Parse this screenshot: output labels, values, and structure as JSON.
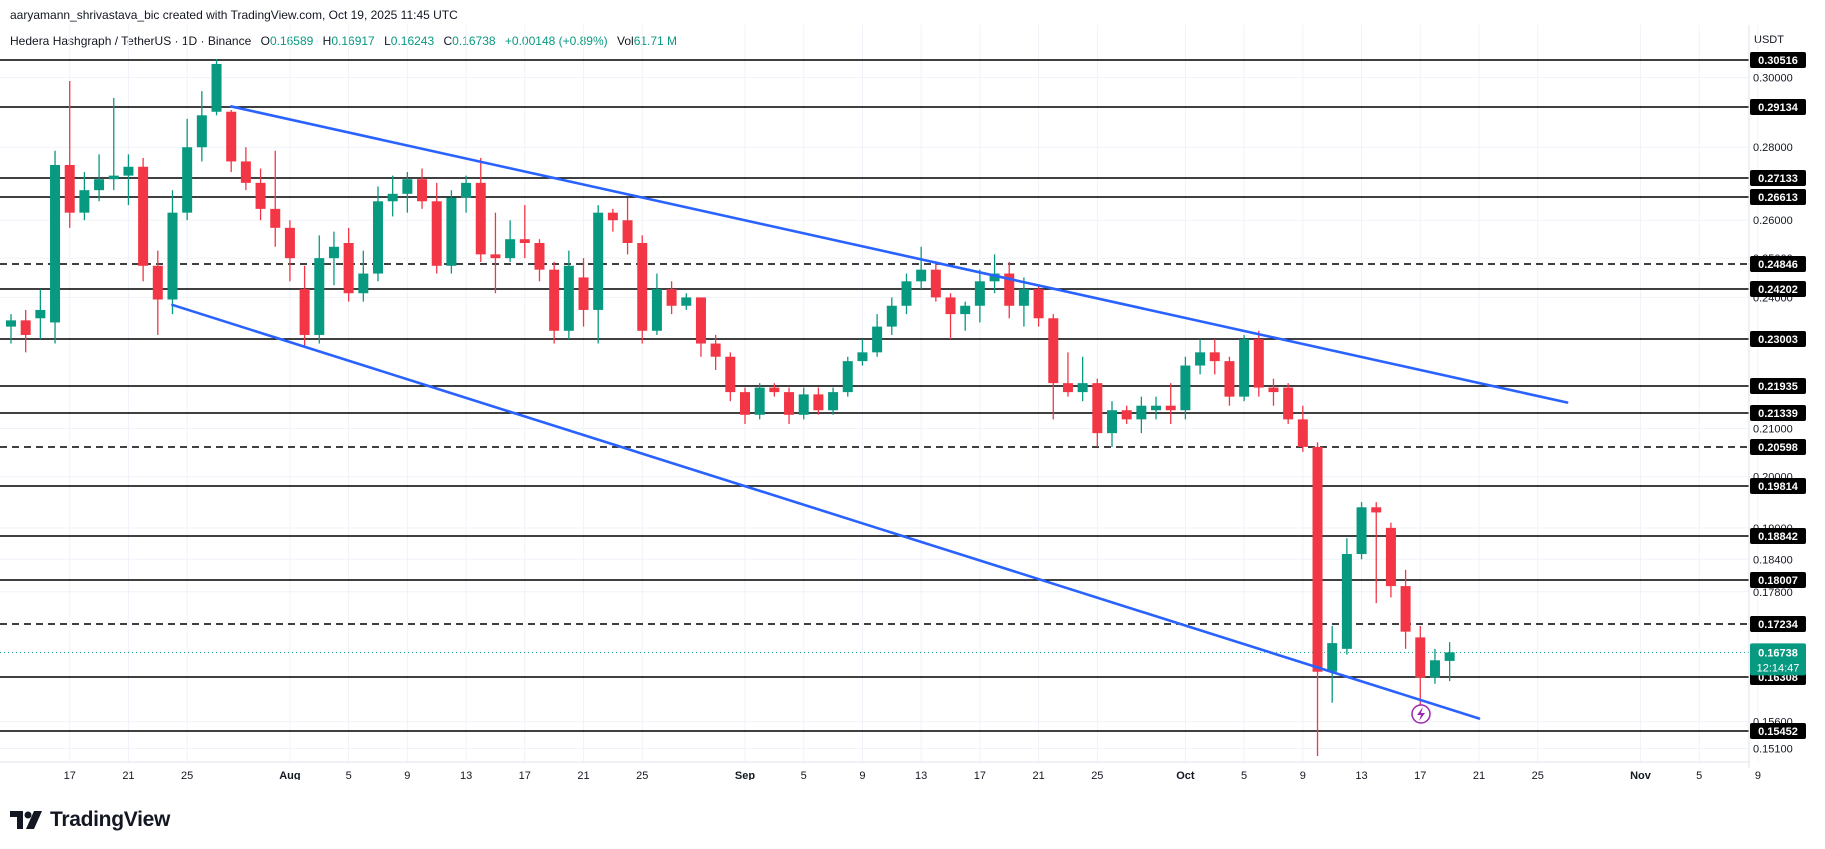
{
  "header": {
    "credit": "aaryamann_shrivastava_bic created with TradingView.com, Oct 19, 2025 11:45 UTC",
    "symbol": "Hedera Hashgraph / TetherUS · 1D · Binance",
    "o_label": "O",
    "o_value": "0.16589",
    "h_label": "H",
    "h_value": "0.16917",
    "l_label": "L",
    "l_value": "0.16243",
    "c_label": "C",
    "c_value": "0.16738",
    "change": "+0.00148 (+0.89%)",
    "vol_label": "Vol",
    "vol_value": "61.71 M"
  },
  "axis": {
    "currency": "USDT"
  },
  "brand": {
    "name": "TradingView"
  },
  "colors": {
    "up": "#089981",
    "down": "#f23645",
    "trendline": "#2962ff",
    "level": "#000000",
    "grid": "#f0f3fa"
  },
  "chart_data": {
    "type": "candlestick",
    "price_axis": {
      "tick_labels": [
        "0.30000",
        "0.28000",
        "0.26000",
        "0.25000",
        "0.24000",
        "0.21000",
        "0.20000",
        "0.19000",
        "0.18400",
        "0.17800",
        "0.15600",
        "0.15100"
      ],
      "ylim": [
        0.1495,
        0.3055
      ]
    },
    "time_axis": {
      "tick_labels": [
        "17",
        "21",
        "25",
        "Aug",
        "5",
        "9",
        "13",
        "17",
        "21",
        "25",
        "Sep",
        "5",
        "9",
        "13",
        "17",
        "21",
        "25",
        "Oct",
        "5",
        "9",
        "13",
        "17",
        "21",
        "25",
        "Nov",
        "5",
        "9"
      ],
      "bold_labels": [
        "Aug",
        "Sep",
        "Oct",
        "Nov"
      ],
      "start_date": "Jul 13",
      "end_date": "Nov 12"
    },
    "horizontal_levels": [
      {
        "value": "0.30516",
        "style": "solid"
      },
      {
        "value": "0.29134",
        "style": "solid"
      },
      {
        "value": "0.27133",
        "style": "solid"
      },
      {
        "value": "0.26613",
        "style": "solid"
      },
      {
        "value": "0.24846",
        "style": "dashed"
      },
      {
        "value": "0.24202",
        "style": "solid"
      },
      {
        "value": "0.23003",
        "style": "solid"
      },
      {
        "value": "0.21935",
        "style": "solid"
      },
      {
        "value": "0.21339",
        "style": "solid"
      },
      {
        "value": "0.20598",
        "style": "dashed"
      },
      {
        "value": "0.19814",
        "style": "solid"
      },
      {
        "value": "0.18842",
        "style": "solid"
      },
      {
        "value": "0.18007",
        "style": "solid"
      },
      {
        "value": "0.17234",
        "style": "dashed"
      },
      {
        "value": "0.16308",
        "style": "solid"
      },
      {
        "value": "0.15452",
        "style": "solid"
      }
    ],
    "current_price": {
      "value": "0.16738",
      "countdown": "12:14:47"
    },
    "trendlines": [
      {
        "name": "upper",
        "from": {
          "date": "Jul 28",
          "price": 0.2915
        },
        "to": {
          "date": "Oct 27",
          "price": 0.2157
        }
      },
      {
        "name": "lower",
        "from": {
          "date": "Jul 24",
          "price": 0.2382
        },
        "to": {
          "date": "Oct 21",
          "price": 0.1565
        }
      }
    ],
    "candles": [
      {
        "date": "Jul 13",
        "o": 0.233,
        "h": 0.236,
        "l": 0.229,
        "c": 0.2345
      },
      {
        "date": "Jul 14",
        "o": 0.2345,
        "h": 0.237,
        "l": 0.227,
        "c": 0.231
      },
      {
        "date": "Jul 15",
        "o": 0.235,
        "h": 0.242,
        "l": 0.23,
        "c": 0.237
      },
      {
        "date": "Jul 16",
        "o": 0.234,
        "h": 0.279,
        "l": 0.229,
        "c": 0.275
      },
      {
        "date": "Jul 17",
        "o": 0.275,
        "h": 0.299,
        "l": 0.258,
        "c": 0.262
      },
      {
        "date": "Jul 18",
        "o": 0.262,
        "h": 0.273,
        "l": 0.26,
        "c": 0.268
      },
      {
        "date": "Jul 19",
        "o": 0.268,
        "h": 0.278,
        "l": 0.265,
        "c": 0.271
      },
      {
        "date": "Jul 20",
        "o": 0.271,
        "h": 0.294,
        "l": 0.268,
        "c": 0.272
      },
      {
        "date": "Jul 21",
        "o": 0.272,
        "h": 0.278,
        "l": 0.264,
        "c": 0.2745
      },
      {
        "date": "Jul 22",
        "o": 0.2745,
        "h": 0.277,
        "l": 0.244,
        "c": 0.248
      },
      {
        "date": "Jul 23",
        "o": 0.248,
        "h": 0.252,
        "l": 0.231,
        "c": 0.2395
      },
      {
        "date": "Jul 24",
        "o": 0.2395,
        "h": 0.268,
        "l": 0.236,
        "c": 0.262
      },
      {
        "date": "Jul 25",
        "o": 0.262,
        "h": 0.288,
        "l": 0.26,
        "c": 0.28
      },
      {
        "date": "Jul 26",
        "o": 0.28,
        "h": 0.296,
        "l": 0.276,
        "c": 0.289
      },
      {
        "date": "Jul 27",
        "o": 0.29,
        "h": 0.306,
        "l": 0.289,
        "c": 0.304
      },
      {
        "date": "Jul 28",
        "o": 0.29,
        "h": 0.2905,
        "l": 0.273,
        "c": 0.276
      },
      {
        "date": "Jul 29",
        "o": 0.276,
        "h": 0.28,
        "l": 0.268,
        "c": 0.27
      },
      {
        "date": "Jul 30",
        "o": 0.27,
        "h": 0.274,
        "l": 0.26,
        "c": 0.263
      },
      {
        "date": "Jul 31",
        "o": 0.263,
        "h": 0.279,
        "l": 0.253,
        "c": 0.258
      },
      {
        "date": "Aug 1",
        "o": 0.258,
        "h": 0.26,
        "l": 0.244,
        "c": 0.25
      },
      {
        "date": "Aug 2",
        "o": 0.242,
        "h": 0.248,
        "l": 0.228,
        "c": 0.231
      },
      {
        "date": "Aug 3",
        "o": 0.231,
        "h": 0.256,
        "l": 0.229,
        "c": 0.25
      },
      {
        "date": "Aug 4",
        "o": 0.25,
        "h": 0.257,
        "l": 0.243,
        "c": 0.253
      },
      {
        "date": "Aug 5",
        "o": 0.254,
        "h": 0.258,
        "l": 0.239,
        "c": 0.241
      },
      {
        "date": "Aug 6",
        "o": 0.241,
        "h": 0.252,
        "l": 0.239,
        "c": 0.246
      },
      {
        "date": "Aug 7",
        "o": 0.246,
        "h": 0.269,
        "l": 0.244,
        "c": 0.265
      },
      {
        "date": "Aug 8",
        "o": 0.265,
        "h": 0.272,
        "l": 0.261,
        "c": 0.267
      },
      {
        "date": "Aug 9",
        "o": 0.267,
        "h": 0.273,
        "l": 0.262,
        "c": 0.271
      },
      {
        "date": "Aug 10",
        "o": 0.271,
        "h": 0.274,
        "l": 0.263,
        "c": 0.265
      },
      {
        "date": "Aug 11",
        "o": 0.265,
        "h": 0.27,
        "l": 0.246,
        "c": 0.248
      },
      {
        "date": "Aug 12",
        "o": 0.248,
        "h": 0.268,
        "l": 0.246,
        "c": 0.266
      },
      {
        "date": "Aug 13",
        "o": 0.266,
        "h": 0.272,
        "l": 0.262,
        "c": 0.27
      },
      {
        "date": "Aug 14",
        "o": 0.27,
        "h": 0.277,
        "l": 0.249,
        "c": 0.251
      },
      {
        "date": "Aug 15",
        "o": 0.251,
        "h": 0.262,
        "l": 0.241,
        "c": 0.25
      },
      {
        "date": "Aug 16",
        "o": 0.25,
        "h": 0.26,
        "l": 0.249,
        "c": 0.255
      },
      {
        "date": "Aug 17",
        "o": 0.255,
        "h": 0.264,
        "l": 0.25,
        "c": 0.254
      },
      {
        "date": "Aug 18",
        "o": 0.254,
        "h": 0.255,
        "l": 0.244,
        "c": 0.247
      },
      {
        "date": "Aug 19",
        "o": 0.247,
        "h": 0.249,
        "l": 0.229,
        "c": 0.232
      },
      {
        "date": "Aug 20",
        "o": 0.232,
        "h": 0.252,
        "l": 0.23,
        "c": 0.248
      },
      {
        "date": "Aug 21",
        "o": 0.245,
        "h": 0.25,
        "l": 0.233,
        "c": 0.237
      },
      {
        "date": "Aug 22",
        "o": 0.237,
        "h": 0.264,
        "l": 0.229,
        "c": 0.262
      },
      {
        "date": "Aug 23",
        "o": 0.262,
        "h": 0.263,
        "l": 0.257,
        "c": 0.26
      },
      {
        "date": "Aug 24",
        "o": 0.26,
        "h": 0.266,
        "l": 0.251,
        "c": 0.254
      },
      {
        "date": "Aug 25",
        "o": 0.254,
        "h": 0.256,
        "l": 0.229,
        "c": 0.232
      },
      {
        "date": "Aug 26",
        "o": 0.232,
        "h": 0.246,
        "l": 0.231,
        "c": 0.242
      },
      {
        "date": "Aug 27",
        "o": 0.242,
        "h": 0.244,
        "l": 0.236,
        "c": 0.238
      },
      {
        "date": "Aug 28",
        "o": 0.238,
        "h": 0.241,
        "l": 0.237,
        "c": 0.24
      },
      {
        "date": "Aug 29",
        "o": 0.24,
        "h": 0.24,
        "l": 0.226,
        "c": 0.229
      },
      {
        "date": "Aug 30",
        "o": 0.229,
        "h": 0.231,
        "l": 0.223,
        "c": 0.226
      },
      {
        "date": "Aug 31",
        "o": 0.226,
        "h": 0.227,
        "l": 0.216,
        "c": 0.218
      },
      {
        "date": "Sep 1",
        "o": 0.218,
        "h": 0.219,
        "l": 0.211,
        "c": 0.213
      },
      {
        "date": "Sep 2",
        "o": 0.213,
        "h": 0.22,
        "l": 0.212,
        "c": 0.219
      },
      {
        "date": "Sep 3",
        "o": 0.219,
        "h": 0.22,
        "l": 0.217,
        "c": 0.218
      },
      {
        "date": "Sep 4",
        "o": 0.218,
        "h": 0.219,
        "l": 0.211,
        "c": 0.213
      },
      {
        "date": "Sep 5",
        "o": 0.213,
        "h": 0.219,
        "l": 0.212,
        "c": 0.2175
      },
      {
        "date": "Sep 6",
        "o": 0.2175,
        "h": 0.219,
        "l": 0.213,
        "c": 0.214
      },
      {
        "date": "Sep 7",
        "o": 0.214,
        "h": 0.219,
        "l": 0.213,
        "c": 0.218
      },
      {
        "date": "Sep 8",
        "o": 0.218,
        "h": 0.226,
        "l": 0.217,
        "c": 0.225
      },
      {
        "date": "Sep 9",
        "o": 0.225,
        "h": 0.23,
        "l": 0.224,
        "c": 0.227
      },
      {
        "date": "Sep 10",
        "o": 0.227,
        "h": 0.236,
        "l": 0.226,
        "c": 0.233
      },
      {
        "date": "Sep 11",
        "o": 0.233,
        "h": 0.24,
        "l": 0.231,
        "c": 0.238
      },
      {
        "date": "Sep 12",
        "o": 0.238,
        "h": 0.246,
        "l": 0.236,
        "c": 0.244
      },
      {
        "date": "Sep 13",
        "o": 0.244,
        "h": 0.253,
        "l": 0.242,
        "c": 0.247
      },
      {
        "date": "Sep 14",
        "o": 0.247,
        "h": 0.249,
        "l": 0.239,
        "c": 0.24
      },
      {
        "date": "Sep 15",
        "o": 0.24,
        "h": 0.241,
        "l": 0.23,
        "c": 0.236
      },
      {
        "date": "Sep 16",
        "o": 0.236,
        "h": 0.239,
        "l": 0.232,
        "c": 0.238
      },
      {
        "date": "Sep 17",
        "o": 0.238,
        "h": 0.247,
        "l": 0.234,
        "c": 0.244
      },
      {
        "date": "Sep 18",
        "o": 0.244,
        "h": 0.251,
        "l": 0.241,
        "c": 0.246
      },
      {
        "date": "Sep 19",
        "o": 0.246,
        "h": 0.249,
        "l": 0.235,
        "c": 0.238
      },
      {
        "date": "Sep 20",
        "o": 0.238,
        "h": 0.245,
        "l": 0.233,
        "c": 0.242
      },
      {
        "date": "Sep 21",
        "o": 0.242,
        "h": 0.243,
        "l": 0.233,
        "c": 0.235
      },
      {
        "date": "Sep 22",
        "o": 0.235,
        "h": 0.236,
        "l": 0.212,
        "c": 0.22
      },
      {
        "date": "Sep 23",
        "o": 0.22,
        "h": 0.227,
        "l": 0.217,
        "c": 0.218
      },
      {
        "date": "Sep 24",
        "o": 0.218,
        "h": 0.226,
        "l": 0.216,
        "c": 0.22
      },
      {
        "date": "Sep 25",
        "o": 0.22,
        "h": 0.221,
        "l": 0.206,
        "c": 0.209
      },
      {
        "date": "Sep 26",
        "o": 0.209,
        "h": 0.216,
        "l": 0.206,
        "c": 0.214
      },
      {
        "date": "Sep 27",
        "o": 0.214,
        "h": 0.215,
        "l": 0.211,
        "c": 0.212
      },
      {
        "date": "Sep 28",
        "o": 0.212,
        "h": 0.217,
        "l": 0.209,
        "c": 0.215
      },
      {
        "date": "Sep 29",
        "o": 0.214,
        "h": 0.217,
        "l": 0.212,
        "c": 0.215
      },
      {
        "date": "Sep 30",
        "o": 0.215,
        "h": 0.22,
        "l": 0.211,
        "c": 0.214
      },
      {
        "date": "Oct 1",
        "o": 0.214,
        "h": 0.226,
        "l": 0.212,
        "c": 0.224
      },
      {
        "date": "Oct 2",
        "o": 0.224,
        "h": 0.23,
        "l": 0.222,
        "c": 0.227
      },
      {
        "date": "Oct 3",
        "o": 0.227,
        "h": 0.23,
        "l": 0.222,
        "c": 0.225
      },
      {
        "date": "Oct 4",
        "o": 0.225,
        "h": 0.226,
        "l": 0.215,
        "c": 0.217
      },
      {
        "date": "Oct 5",
        "o": 0.217,
        "h": 0.231,
        "l": 0.216,
        "c": 0.23
      },
      {
        "date": "Oct 6",
        "o": 0.23,
        "h": 0.232,
        "l": 0.217,
        "c": 0.219
      },
      {
        "date": "Oct 7",
        "o": 0.219,
        "h": 0.221,
        "l": 0.215,
        "c": 0.218
      },
      {
        "date": "Oct 8",
        "o": 0.219,
        "h": 0.22,
        "l": 0.211,
        "c": 0.212
      },
      {
        "date": "Oct 9",
        "o": 0.212,
        "h": 0.215,
        "l": 0.205,
        "c": 0.206
      },
      {
        "date": "Oct 10",
        "o": 0.206,
        "h": 0.207,
        "l": 0.148,
        "c": 0.164
      },
      {
        "date": "Oct 11",
        "o": 0.164,
        "h": 0.172,
        "l": 0.159,
        "c": 0.169
      },
      {
        "date": "Oct 12",
        "o": 0.168,
        "h": 0.188,
        "l": 0.167,
        "c": 0.185
      },
      {
        "date": "Oct 13",
        "o": 0.185,
        "h": 0.195,
        "l": 0.184,
        "c": 0.194
      },
      {
        "date": "Oct 14",
        "o": 0.194,
        "h": 0.195,
        "l": 0.176,
        "c": 0.193
      },
      {
        "date": "Oct 15",
        "o": 0.19,
        "h": 0.191,
        "l": 0.177,
        "c": 0.179
      },
      {
        "date": "Oct 16",
        "o": 0.179,
        "h": 0.182,
        "l": 0.168,
        "c": 0.171
      },
      {
        "date": "Oct 17",
        "o": 0.17,
        "h": 0.172,
        "l": 0.156,
        "c": 0.163
      },
      {
        "date": "Oct 18",
        "o": 0.163,
        "h": 0.168,
        "l": 0.162,
        "c": 0.166
      },
      {
        "date": "Oct 19",
        "o": 0.16589,
        "h": 0.16917,
        "l": 0.16243,
        "c": 0.16738
      }
    ]
  }
}
